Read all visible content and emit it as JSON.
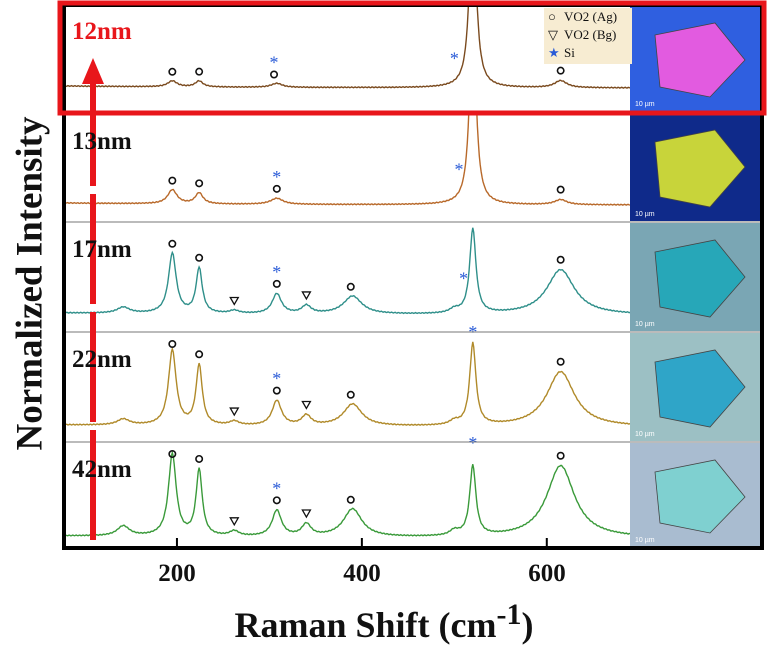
{
  "chart_data": {
    "type": "line",
    "xlabel": "Raman Shift (cm-1)",
    "ylabel": "Normalized Intensity",
    "xlim": [
      80,
      690
    ],
    "xticks": [
      200,
      400,
      600
    ],
    "legend": {
      "placement": "top-right",
      "entries": [
        {
          "symbol": "circle",
          "label": "VO2 (Ag)"
        },
        {
          "symbol": "triangle-down",
          "label": "VO2 (Bg)"
        },
        {
          "symbol": "star",
          "label": "Si",
          "color": "#2a5bd7"
        }
      ]
    },
    "series": [
      {
        "name": "12nm",
        "color": "#7a4a1e",
        "highlight_color": "#e8161b",
        "peaks": [
          [
            195,
            0.06,
            6
          ],
          [
            224,
            0.06,
            5
          ],
          [
            308,
            0.04,
            7
          ],
          [
            520,
            2.0,
            4
          ],
          [
            615,
            0.07,
            8
          ]
        ],
        "markers": [
          [
            "circle",
            195
          ],
          [
            "circle",
            224
          ],
          [
            "circle",
            305
          ],
          [
            "star",
            305
          ],
          [
            "star",
            500
          ],
          [
            "circle",
            615
          ]
        ],
        "image_scale": "10 µm"
      },
      {
        "name": "13nm",
        "color": "#b8692a",
        "peaks": [
          [
            195,
            0.14,
            6
          ],
          [
            224,
            0.11,
            5
          ],
          [
            308,
            0.06,
            8
          ],
          [
            520,
            2.0,
            4
          ],
          [
            615,
            0.05,
            8
          ]
        ],
        "markers": [
          [
            "circle",
            195
          ],
          [
            "circle",
            224
          ],
          [
            "circle",
            308
          ],
          [
            "star",
            308
          ],
          [
            "star",
            505
          ],
          [
            "circle",
            615
          ]
        ],
        "image_scale": "10 µm"
      },
      {
        "name": "17nm",
        "color": "#2f8f8a",
        "peaks": [
          [
            142,
            0.06,
            8
          ],
          [
            195,
            0.6,
            5
          ],
          [
            224,
            0.45,
            4
          ],
          [
            262,
            0.03,
            6
          ],
          [
            308,
            0.2,
            6
          ],
          [
            340,
            0.08,
            6
          ],
          [
            390,
            0.18,
            12
          ],
          [
            500,
            0.04,
            6
          ],
          [
            520,
            0.85,
            4
          ],
          [
            615,
            0.45,
            18
          ]
        ],
        "markers": [
          [
            "circle",
            195
          ],
          [
            "circle",
            224
          ],
          [
            "triangle",
            262
          ],
          [
            "circle",
            308
          ],
          [
            "star",
            308
          ],
          [
            "triangle",
            340
          ],
          [
            "circle",
            388
          ],
          [
            "star",
            510
          ],
          [
            "circle",
            615
          ]
        ],
        "image_scale": "10 µm"
      },
      {
        "name": "22nm",
        "color": "#b08a2a",
        "peaks": [
          [
            142,
            0.06,
            8
          ],
          [
            195,
            0.75,
            5
          ],
          [
            224,
            0.6,
            4
          ],
          [
            262,
            0.04,
            6
          ],
          [
            308,
            0.25,
            6
          ],
          [
            340,
            0.1,
            6
          ],
          [
            390,
            0.22,
            12
          ],
          [
            500,
            0.04,
            6
          ],
          [
            520,
            0.82,
            4
          ],
          [
            615,
            0.55,
            18
          ]
        ],
        "markers": [
          [
            "circle",
            195
          ],
          [
            "circle",
            224
          ],
          [
            "triangle",
            262
          ],
          [
            "circle",
            308
          ],
          [
            "star",
            308
          ],
          [
            "triangle",
            340
          ],
          [
            "circle",
            388
          ],
          [
            "star",
            520
          ],
          [
            "circle",
            615
          ]
        ],
        "image_scale": "10 µm"
      },
      {
        "name": "42nm",
        "color": "#3a9a3a",
        "peaks": [
          [
            142,
            0.1,
            8
          ],
          [
            195,
            0.82,
            5
          ],
          [
            224,
            0.66,
            4
          ],
          [
            262,
            0.05,
            6
          ],
          [
            308,
            0.26,
            6
          ],
          [
            340,
            0.12,
            6
          ],
          [
            390,
            0.28,
            12
          ],
          [
            500,
            0.05,
            6
          ],
          [
            520,
            0.7,
            4
          ],
          [
            615,
            0.72,
            18
          ]
        ],
        "markers": [
          [
            "circle",
            195
          ],
          [
            "circle",
            224
          ],
          [
            "triangle",
            262
          ],
          [
            "circle",
            308
          ],
          [
            "star",
            308
          ],
          [
            "triangle",
            340
          ],
          [
            "circle",
            388
          ],
          [
            "star",
            520
          ],
          [
            "circle",
            615
          ]
        ],
        "image_scale": "10 µm"
      }
    ]
  }
}
